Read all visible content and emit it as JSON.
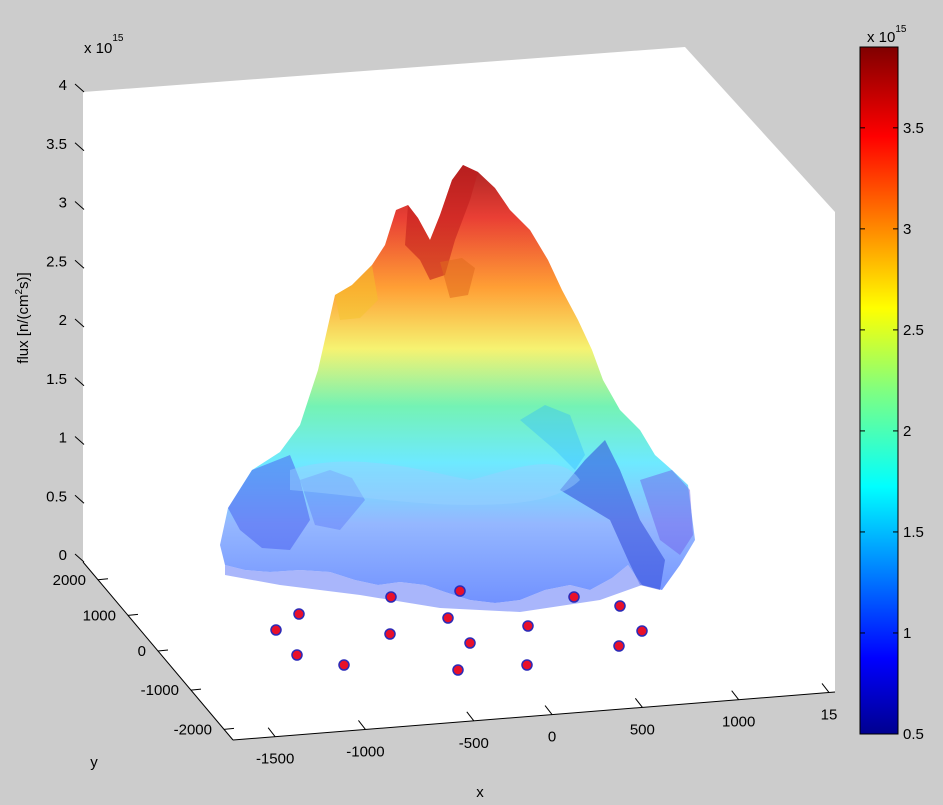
{
  "chart_data": {
    "type": "surface",
    "zlabel": "flux [n/(cm",
    "zlabel_sup": "2",
    "zlabel_tail": "s)]",
    "xlabel": "x",
    "ylabel": "y",
    "exponent_base": "x 10",
    "exponent_power": "15",
    "z_ticks": [
      "0",
      "0.5",
      "1",
      "1.5",
      "2",
      "2.5",
      "3",
      "3.5",
      "4"
    ],
    "z_range": [
      0,
      4
    ],
    "x_ticks": [
      "-1500",
      "-1000",
      "-500",
      "0",
      "500",
      "1000",
      "15"
    ],
    "y_ticks": [
      "2000",
      "1000",
      "0",
      "-1000",
      "-2000"
    ],
    "colorbar_ticks": [
      "0.5",
      "1",
      "1.5",
      "2",
      "2.5",
      "3",
      "3.5"
    ],
    "colorbar_range": [
      0.5,
      3.9
    ],
    "colormap": [
      "#00008f",
      "#0000ff",
      "#0080ff",
      "#00ffff",
      "#80ff80",
      "#ffff00",
      "#ff8000",
      "#ff0000",
      "#800000"
    ],
    "surface_peak_z": 3.35,
    "marker_color": "#e8102a",
    "marker_edge_color": "#2b2bb8",
    "marker_count": 16
  }
}
